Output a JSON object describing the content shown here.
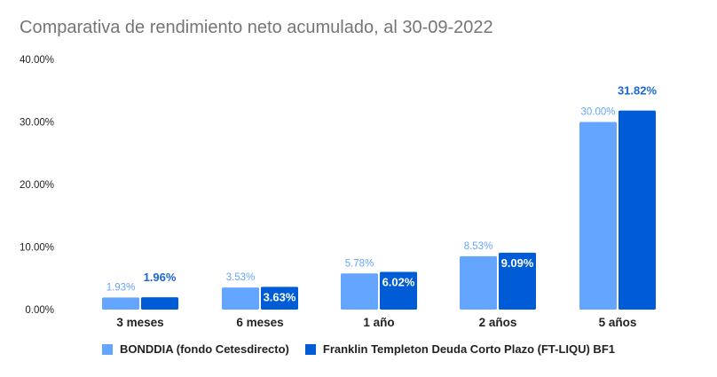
{
  "chart_data": {
    "type": "bar",
    "title": "Comparativa de rendimiento neto acumulado, al 30-09-2022",
    "categories": [
      "3 meses",
      "6 meses",
      "1 año",
      "2 años",
      "5 años"
    ],
    "series": [
      {
        "name": "BONDDIA (fondo Cetesdirecto)",
        "values": [
          1.93,
          3.53,
          5.78,
          8.53,
          30.0
        ],
        "labels": [
          "1.93%",
          "3.53%",
          "5.78%",
          "8.53%",
          "30.00%"
        ],
        "color": "#64a5ff"
      },
      {
        "name": "Franklin Templeton Deuda Corto Plazo (FT-LIQU) BF1",
        "values": [
          1.96,
          3.63,
          6.02,
          9.09,
          31.82
        ],
        "labels": [
          "1.96%",
          "3.63%",
          "6.02%",
          "9.09%",
          "31.82%"
        ],
        "color": "#005cd6"
      }
    ],
    "ylim": [
      0,
      40
    ],
    "yticks": [
      "0.00%",
      "10.00%",
      "20.00%",
      "30.00%",
      "40.00%"
    ],
    "ytick_values": [
      0,
      10,
      20,
      30,
      40
    ],
    "grid": false,
    "legend": "bottom"
  }
}
